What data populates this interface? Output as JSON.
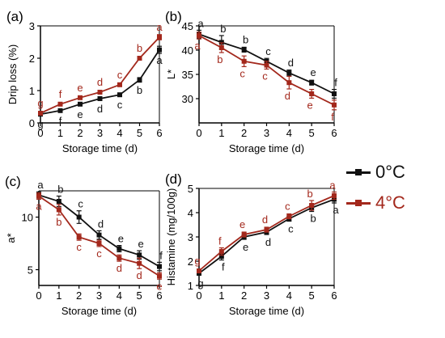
{
  "colors": {
    "s0": "#111111",
    "s4": "#a3281c"
  },
  "legend": [
    {
      "label": "0°C",
      "color": "#111111"
    },
    {
      "label": "4°C",
      "color": "#a3281c"
    }
  ],
  "chart_data": [
    {
      "panel": "(a)",
      "type": "line",
      "xlabel": "Storage time (d)",
      "ylabel": "Drip loss (%)",
      "xlim": [
        0,
        6
      ],
      "ylim": [
        0,
        3
      ],
      "xticks": [
        0,
        1,
        2,
        3,
        4,
        5,
        6
      ],
      "yticks": [
        0,
        1,
        2,
        3
      ],
      "series": [
        {
          "name": "0°C",
          "x": [
            0,
            1,
            2,
            3,
            4,
            5,
            6
          ],
          "y": [
            0.27,
            0.38,
            0.58,
            0.75,
            0.87,
            1.33,
            2.26
          ],
          "err": [
            0.05,
            0.05,
            0.05,
            0.06,
            0.05,
            0.07,
            0.11
          ],
          "letters": [
            "g",
            "f",
            "e",
            "d",
            "c",
            "b",
            "a"
          ]
        },
        {
          "name": "4°C",
          "x": [
            0,
            1,
            2,
            3,
            4,
            5,
            6
          ],
          "y": [
            0.3,
            0.58,
            0.78,
            0.95,
            1.18,
            2.0,
            2.65
          ],
          "err": [
            0.04,
            0.05,
            0.05,
            0.05,
            0.05,
            0.06,
            0.08
          ],
          "letters": [
            "g",
            "f",
            "e",
            "d",
            "c",
            "b",
            "a"
          ]
        }
      ]
    },
    {
      "panel": "(b)",
      "type": "line",
      "xlabel": "Storage time (d)",
      "ylabel": "L*",
      "xlim": [
        0,
        6
      ],
      "ylim": [
        25,
        45
      ],
      "xticks": [
        0,
        1,
        2,
        3,
        4,
        5,
        6
      ],
      "yticks": [
        30,
        35,
        40,
        45
      ],
      "series": [
        {
          "name": "0°C",
          "x": [
            0,
            1,
            2,
            3,
            4,
            5,
            6
          ],
          "y": [
            43.3,
            41.6,
            40.1,
            37.7,
            35.3,
            33.3,
            31.0
          ],
          "err": [
            0.8,
            1.4,
            0.5,
            0.6,
            0.6,
            0.5,
            0.9
          ],
          "letters": [
            "a",
            "b",
            "b",
            "c",
            "d",
            "e",
            "f"
          ]
        },
        {
          "name": "4°C",
          "x": [
            0,
            1,
            2,
            3,
            4,
            5,
            6
          ],
          "y": [
            43.0,
            40.5,
            37.7,
            36.9,
            33.3,
            31.0,
            28.7
          ],
          "err": [
            0.7,
            1.0,
            1.1,
            0.8,
            1.3,
            0.9,
            1.0
          ],
          "letters": [
            "a",
            "b",
            "c",
            "c",
            "d",
            "e",
            "f"
          ]
        }
      ]
    },
    {
      "panel": "(c)",
      "type": "line",
      "xlabel": "Storage time (d)",
      "ylabel": "a*",
      "xlim": [
        0,
        6
      ],
      "ylim": [
        3.5,
        12.5
      ],
      "xticks": [
        0,
        1,
        2,
        3,
        4,
        5,
        6
      ],
      "yticks": [
        5,
        10
      ],
      "series": [
        {
          "name": "0°C",
          "x": [
            0,
            1,
            2,
            3,
            4,
            5,
            6
          ],
          "y": [
            12.1,
            11.5,
            10.0,
            8.3,
            7.0,
            6.4,
            5.3
          ],
          "err": [
            0.3,
            0.5,
            0.6,
            0.4,
            0.3,
            0.4,
            0.4
          ],
          "letters": [
            "a",
            "b",
            "c",
            "d",
            "e",
            "e",
            "f"
          ]
        },
        {
          "name": "4°C",
          "x": [
            0,
            1,
            2,
            3,
            4,
            5,
            6
          ],
          "y": [
            12.0,
            10.7,
            8.1,
            7.5,
            6.1,
            5.6,
            4.4
          ],
          "err": [
            0.3,
            0.5,
            0.3,
            0.3,
            0.3,
            0.5,
            0.3
          ],
          "letters": [
            "a",
            "b",
            "c",
            "c",
            "d",
            "d",
            "e"
          ]
        }
      ]
    },
    {
      "panel": "(d)",
      "type": "line",
      "xlabel": "Storage time (d)",
      "ylabel": "Histamine (mg/100g)",
      "xlim": [
        0,
        6
      ],
      "ylim": [
        1,
        5
      ],
      "xticks": [
        0,
        1,
        2,
        3,
        4,
        5,
        6
      ],
      "yticks": [
        1,
        2,
        3,
        4,
        5
      ],
      "series": [
        {
          "name": "0°C",
          "x": [
            0,
            1,
            2,
            3,
            4,
            5,
            6
          ],
          "y": [
            1.5,
            2.2,
            3.0,
            3.2,
            3.75,
            4.2,
            4.55
          ],
          "err": [
            0.05,
            0.15,
            0.1,
            0.1,
            0.1,
            0.15,
            0.15
          ],
          "letters": [
            "g",
            "f",
            "e",
            "d",
            "c",
            "b",
            "a"
          ]
        },
        {
          "name": "4°C",
          "x": [
            0,
            1,
            2,
            3,
            4,
            5,
            6
          ],
          "y": [
            1.6,
            2.4,
            3.1,
            3.3,
            3.85,
            4.3,
            4.7
          ],
          "err": [
            0.05,
            0.15,
            0.1,
            0.1,
            0.1,
            0.2,
            0.15
          ],
          "letters": [
            "g",
            "f",
            "e",
            "d",
            "c",
            "b",
            "a"
          ]
        }
      ]
    }
  ]
}
